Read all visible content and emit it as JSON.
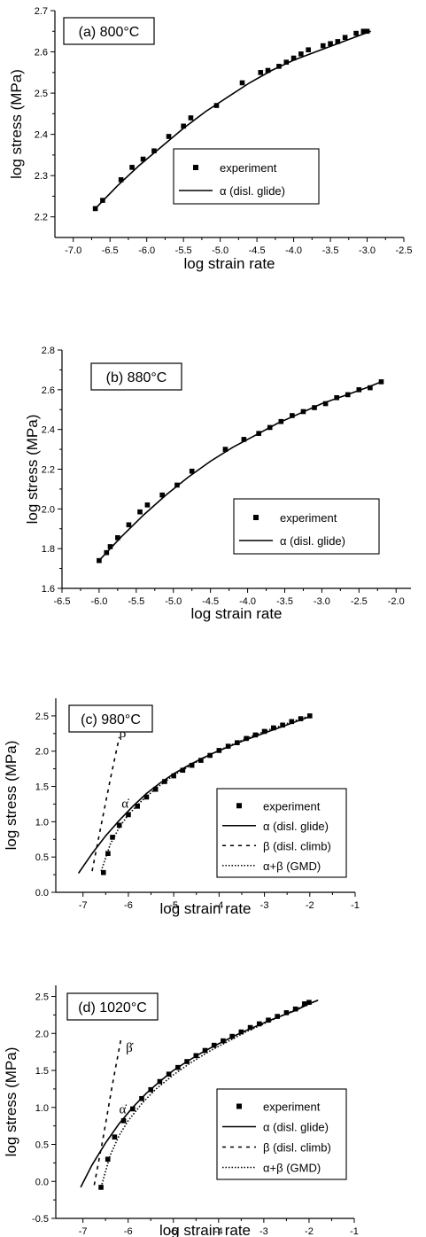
{
  "chart_data": [
    {
      "type": "scatter",
      "panel_label": "(a) 800°C",
      "xlabel": "log strain rate",
      "ylabel": "log stress (MPa)",
      "xlim": [
        -7.25,
        -2.5
      ],
      "ylim": [
        2.15,
        2.7
      ],
      "xticks": [
        -7.0,
        -6.5,
        -6.0,
        -5.5,
        -5.0,
        -4.5,
        -4.0,
        -3.5,
        -3.0,
        -2.5
      ],
      "xtick_labels": [
        "-7.0",
        "-6.5",
        "-6.0",
        "-5.5",
        "-5.0",
        "-4.5",
        "-4.0",
        "-3.5",
        "-3.0",
        "-2.5"
      ],
      "yticks": [
        2.2,
        2.3,
        2.4,
        2.5,
        2.6,
        2.7
      ],
      "ytick_labels": [
        "2.2",
        "2.3",
        "2.4",
        "2.5",
        "2.6",
        "2.7"
      ],
      "legend_position": "center-right",
      "series": [
        {
          "name": "experiment",
          "kind": "markers",
          "x": [
            -6.7,
            -6.6,
            -6.35,
            -6.2,
            -6.05,
            -5.9,
            -5.7,
            -5.5,
            -5.4,
            -5.05,
            -4.7,
            -4.45,
            -4.35,
            -4.2,
            -4.1,
            -4.0,
            -3.9,
            -3.8,
            -3.6,
            -3.5,
            -3.4,
            -3.3,
            -3.15,
            -3.05,
            -3.0
          ],
          "y": [
            2.22,
            2.24,
            2.29,
            2.32,
            2.34,
            2.36,
            2.395,
            2.42,
            2.44,
            2.47,
            2.525,
            2.55,
            2.555,
            2.565,
            2.575,
            2.585,
            2.595,
            2.605,
            2.615,
            2.62,
            2.625,
            2.635,
            2.645,
            2.65,
            2.65
          ]
        },
        {
          "name": "α (disl. glide)",
          "kind": "line",
          "dash": "solid",
          "x": [
            -6.7,
            -6.4,
            -6.1,
            -5.8,
            -5.5,
            -5.2,
            -4.9,
            -4.6,
            -4.3,
            -4.0,
            -3.7,
            -3.4,
            -3.1,
            -2.95
          ],
          "y": [
            2.22,
            2.275,
            2.325,
            2.37,
            2.415,
            2.455,
            2.49,
            2.525,
            2.555,
            2.58,
            2.6,
            2.62,
            2.64,
            2.65
          ]
        }
      ]
    },
    {
      "type": "scatter",
      "panel_label": "(b) 880°C",
      "xlabel": "log strain rate",
      "ylabel": "log stress (MPa)",
      "xlim": [
        -6.5,
        -1.8
      ],
      "ylim": [
        1.6,
        2.8
      ],
      "xticks": [
        -6.5,
        -6.0,
        -5.5,
        -5.0,
        -4.5,
        -4.0,
        -3.5,
        -3.0,
        -2.5,
        -2.0
      ],
      "xtick_labels": [
        "-6.5",
        "-6.0",
        "-5.5",
        "-5.0",
        "-4.5",
        "-4.0",
        "-3.5",
        "-3.0",
        "-2.5",
        "-2.0"
      ],
      "yticks": [
        1.6,
        1.8,
        2.0,
        2.2,
        2.4,
        2.6,
        2.8
      ],
      "ytick_labels": [
        "1.6",
        "1.8",
        "2.0",
        "2.2",
        "2.4",
        "2.6",
        "2.8"
      ],
      "legend_position": "bottom-right",
      "series": [
        {
          "name": "experiment",
          "kind": "markers",
          "x": [
            -6.0,
            -5.9,
            -5.85,
            -5.75,
            -5.6,
            -5.45,
            -5.35,
            -5.15,
            -4.95,
            -4.75,
            -4.3,
            -4.05,
            -3.85,
            -3.7,
            -3.55,
            -3.4,
            -3.25,
            -3.1,
            -2.95,
            -2.8,
            -2.65,
            -2.5,
            -2.35,
            -2.2
          ],
          "y": [
            1.74,
            1.78,
            1.81,
            1.855,
            1.92,
            1.985,
            2.02,
            2.07,
            2.12,
            2.19,
            2.3,
            2.35,
            2.38,
            2.41,
            2.44,
            2.47,
            2.49,
            2.51,
            2.53,
            2.56,
            2.575,
            2.6,
            2.61,
            2.64
          ]
        },
        {
          "name": "α (disl. glide)",
          "kind": "line",
          "dash": "solid",
          "x": [
            -6.0,
            -5.7,
            -5.4,
            -5.1,
            -4.8,
            -4.5,
            -4.2,
            -3.9,
            -3.6,
            -3.3,
            -3.0,
            -2.7,
            -2.4,
            -2.2
          ],
          "y": [
            1.74,
            1.86,
            1.97,
            2.07,
            2.16,
            2.24,
            2.31,
            2.37,
            2.43,
            2.48,
            2.53,
            2.57,
            2.61,
            2.64
          ]
        }
      ]
    },
    {
      "type": "scatter",
      "panel_label": "(c) 980°C",
      "xlabel": "log strain rate",
      "ylabel": "log stress (MPa)",
      "xlim": [
        -7.6,
        -1.0
      ],
      "ylim": [
        0.0,
        2.75
      ],
      "xticks": [
        -7,
        -6,
        -5,
        -4,
        -3,
        -2,
        -1
      ],
      "xtick_labels": [
        "-7",
        "-6",
        "-5",
        "-4",
        "-3",
        "-2",
        "-1"
      ],
      "yticks": [
        0.0,
        0.5,
        1.0,
        1.5,
        2.0,
        2.5
      ],
      "ytick_labels": [
        "0.0",
        "0.5",
        "1.0",
        "1.5",
        "2.0",
        "2.5"
      ],
      "legend_position": "bottom-right",
      "annotations": [
        {
          "text": "β̇",
          "x": -6.2,
          "y": 2.2
        },
        {
          "text": "α̇",
          "x": -6.15,
          "y": 1.2
        }
      ],
      "series": [
        {
          "name": "experiment",
          "kind": "markers",
          "x": [
            -6.55,
            -6.45,
            -6.35,
            -6.2,
            -6.0,
            -5.8,
            -5.6,
            -5.4,
            -5.2,
            -5.0,
            -4.8,
            -4.6,
            -4.4,
            -4.2,
            -4.0,
            -3.8,
            -3.6,
            -3.4,
            -3.2,
            -3.0,
            -2.8,
            -2.6,
            -2.4,
            -2.2,
            -2.0
          ],
          "y": [
            0.28,
            0.55,
            0.78,
            0.95,
            1.1,
            1.22,
            1.35,
            1.46,
            1.57,
            1.65,
            1.73,
            1.8,
            1.87,
            1.94,
            2.01,
            2.07,
            2.12,
            2.18,
            2.23,
            2.28,
            2.33,
            2.37,
            2.42,
            2.46,
            2.5
          ]
        },
        {
          "name": "α (disl. glide)",
          "kind": "line",
          "dash": "solid",
          "x": [
            -7.1,
            -6.8,
            -6.5,
            -6.2,
            -5.9,
            -5.6,
            -5.3,
            -5.0,
            -4.7,
            -4.4,
            -4.1,
            -3.8,
            -3.5,
            -3.2,
            -2.9,
            -2.6,
            -2.3,
            -2.0
          ],
          "y": [
            0.27,
            0.55,
            0.8,
            1.02,
            1.22,
            1.4,
            1.55,
            1.68,
            1.79,
            1.89,
            1.98,
            2.06,
            2.14,
            2.21,
            2.28,
            2.35,
            2.42,
            2.49
          ]
        },
        {
          "name": "β (disl. climb)",
          "kind": "line",
          "dash": "dashed",
          "x": [
            -6.8,
            -6.6,
            -6.4,
            -6.2
          ],
          "y": [
            0.3,
            0.95,
            1.6,
            2.2
          ]
        },
        {
          "name": "α+β (GMD)",
          "kind": "line",
          "dash": "dotted",
          "x": [
            -6.6,
            -6.4,
            -6.2,
            -6.0,
            -5.7,
            -5.4,
            -5.0,
            -4.6,
            -4.2,
            -3.8,
            -3.4,
            -3.0,
            -2.6,
            -2.2,
            -2.0
          ],
          "y": [
            0.3,
            0.68,
            0.92,
            1.1,
            1.3,
            1.47,
            1.66,
            1.81,
            1.95,
            2.07,
            2.18,
            2.28,
            2.37,
            2.46,
            2.5
          ]
        }
      ]
    },
    {
      "type": "scatter",
      "panel_label": "(d) 1020°C",
      "xlabel": "log strain rate",
      "ylabel": "log stress (MPa)",
      "xlim": [
        -7.6,
        -1.0
      ],
      "ylim": [
        -0.5,
        2.65
      ],
      "xticks": [
        -7,
        -6,
        -5,
        -4,
        -3,
        -2,
        -1
      ],
      "xtick_labels": [
        "-7",
        "-6",
        "-5",
        "-4",
        "-3",
        "-2",
        "-1"
      ],
      "yticks": [
        -0.5,
        0.0,
        0.5,
        1.0,
        1.5,
        2.0,
        2.5
      ],
      "ytick_labels": [
        "-0.5",
        "0.0",
        "0.5",
        "1.0",
        "1.5",
        "2.0",
        "2.5"
      ],
      "legend_position": "bottom-right",
      "annotations": [
        {
          "text": "β̇",
          "x": -6.05,
          "y": 1.75
        },
        {
          "text": "α̇",
          "x": -6.2,
          "y": 0.92
        }
      ],
      "series": [
        {
          "name": "experiment",
          "kind": "markers",
          "x": [
            -6.6,
            -6.45,
            -6.3,
            -6.1,
            -5.9,
            -5.7,
            -5.5,
            -5.3,
            -5.1,
            -4.9,
            -4.7,
            -4.5,
            -4.3,
            -4.1,
            -3.9,
            -3.7,
            -3.5,
            -3.3,
            -3.1,
            -2.9,
            -2.7,
            -2.5,
            -2.3,
            -2.1,
            -2.0
          ],
          "y": [
            -0.08,
            0.3,
            0.6,
            0.82,
            0.98,
            1.12,
            1.24,
            1.35,
            1.45,
            1.54,
            1.62,
            1.7,
            1.77,
            1.84,
            1.9,
            1.96,
            2.02,
            2.08,
            2.13,
            2.18,
            2.23,
            2.28,
            2.33,
            2.4,
            2.42
          ]
        },
        {
          "name": "α (disl. glide)",
          "kind": "line",
          "dash": "solid",
          "x": [
            -7.05,
            -6.8,
            -6.5,
            -6.2,
            -5.9,
            -5.6,
            -5.3,
            -5.0,
            -4.7,
            -4.4,
            -4.1,
            -3.8,
            -3.5,
            -3.2,
            -2.9,
            -2.6,
            -2.3,
            -2.0,
            -1.8
          ],
          "y": [
            -0.08,
            0.22,
            0.52,
            0.78,
            1.0,
            1.19,
            1.35,
            1.5,
            1.62,
            1.73,
            1.83,
            1.92,
            2.01,
            2.09,
            2.17,
            2.24,
            2.31,
            2.4,
            2.45
          ]
        },
        {
          "name": "β (disl. climb)",
          "kind": "line",
          "dash": "dashed",
          "x": [
            -6.75,
            -6.55,
            -6.35,
            -6.15
          ],
          "y": [
            -0.05,
            0.6,
            1.3,
            1.95
          ]
        },
        {
          "name": "α+β (GMD)",
          "kind": "line",
          "dash": "dotted",
          "x": [
            -6.6,
            -6.4,
            -6.2,
            -6.0,
            -5.7,
            -5.4,
            -5.0,
            -4.6,
            -4.2,
            -3.8,
            -3.4,
            -3.0,
            -2.6,
            -2.2,
            -1.8
          ],
          "y": [
            -0.08,
            0.35,
            0.62,
            0.82,
            1.05,
            1.24,
            1.44,
            1.61,
            1.76,
            1.89,
            2.02,
            2.13,
            2.24,
            2.35,
            2.45
          ]
        }
      ]
    }
  ]
}
